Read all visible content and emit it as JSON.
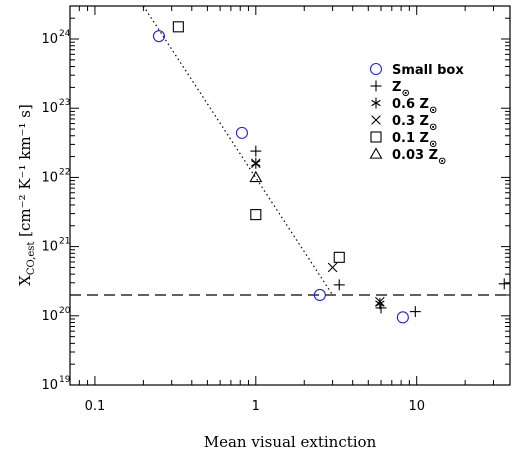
{
  "chart_data": {
    "type": "scatter",
    "xlabel": "Mean visual extinction",
    "ylabel": "X",
    "ylabel_sub": "CO,est",
    "ylabel_units": "[cm⁻² K⁻¹ km⁻¹ s]",
    "x_scale": "log",
    "y_scale": "log",
    "xlim": [
      0.07,
      38
    ],
    "ylim": [
      1e+19,
      3e+24
    ],
    "x_tick_labels": [
      "0.1",
      "1",
      "10"
    ],
    "y_tick_labels": [
      "10",
      "10",
      "10",
      "10",
      "10",
      "10"
    ],
    "y_tick_exponents": [
      "19",
      "20",
      "21",
      "22",
      "23",
      "24"
    ],
    "legend_position": "upper right",
    "series": [
      {
        "name": "Small box",
        "marker": "circle",
        "color": "#2222cc",
        "points": [
          [
            0.25,
            1.1e+24
          ],
          [
            0.82,
            4.4e+22
          ],
          [
            2.5,
            2e+20
          ],
          [
            8.2,
            9.5e+19
          ]
        ]
      },
      {
        "name": "Z",
        "name_sub": "⊙",
        "marker": "plus",
        "color": "#000000",
        "points": [
          [
            1.0,
            2.4e+22
          ],
          [
            3.3,
            2.8e+20
          ],
          [
            6.0,
            1.3e+20
          ],
          [
            9.8,
            1.15e+20
          ],
          [
            35,
            2.9e+20
          ]
        ]
      },
      {
        "name": "0.6 Z",
        "name_sub": "⊙",
        "marker": "asterisk",
        "color": "#000000",
        "points": [
          [
            1.0,
            1.6e+22
          ],
          [
            5.9,
            1.5e+20
          ]
        ]
      },
      {
        "name": "0.3 Z",
        "name_sub": "⊙",
        "marker": "cross",
        "color": "#000000",
        "points": [
          [
            1.0,
            1.6e+22
          ],
          [
            3.0,
            5e+20
          ],
          [
            5.9,
            1.6e+20
          ]
        ]
      },
      {
        "name": "0.1 Z",
        "name_sub": "⊙",
        "marker": "square",
        "color": "#000000",
        "points": [
          [
            0.33,
            1.5e+24
          ],
          [
            1.0,
            2.9e+21
          ],
          [
            3.3,
            7e+20
          ]
        ]
      },
      {
        "name": "0.03 Z",
        "name_sub": "⊙",
        "marker": "triangle",
        "color": "#000000",
        "points": [
          [
            1.0,
            1e+22
          ]
        ]
      }
    ],
    "reference_lines": [
      {
        "style": "dashed",
        "kind": "horizontal",
        "y": 2e+20
      },
      {
        "style": "dotted",
        "kind": "fit",
        "points": [
          [
            0.2,
            3e+24
          ],
          [
            3.0,
            2e+20
          ]
        ]
      }
    ]
  }
}
